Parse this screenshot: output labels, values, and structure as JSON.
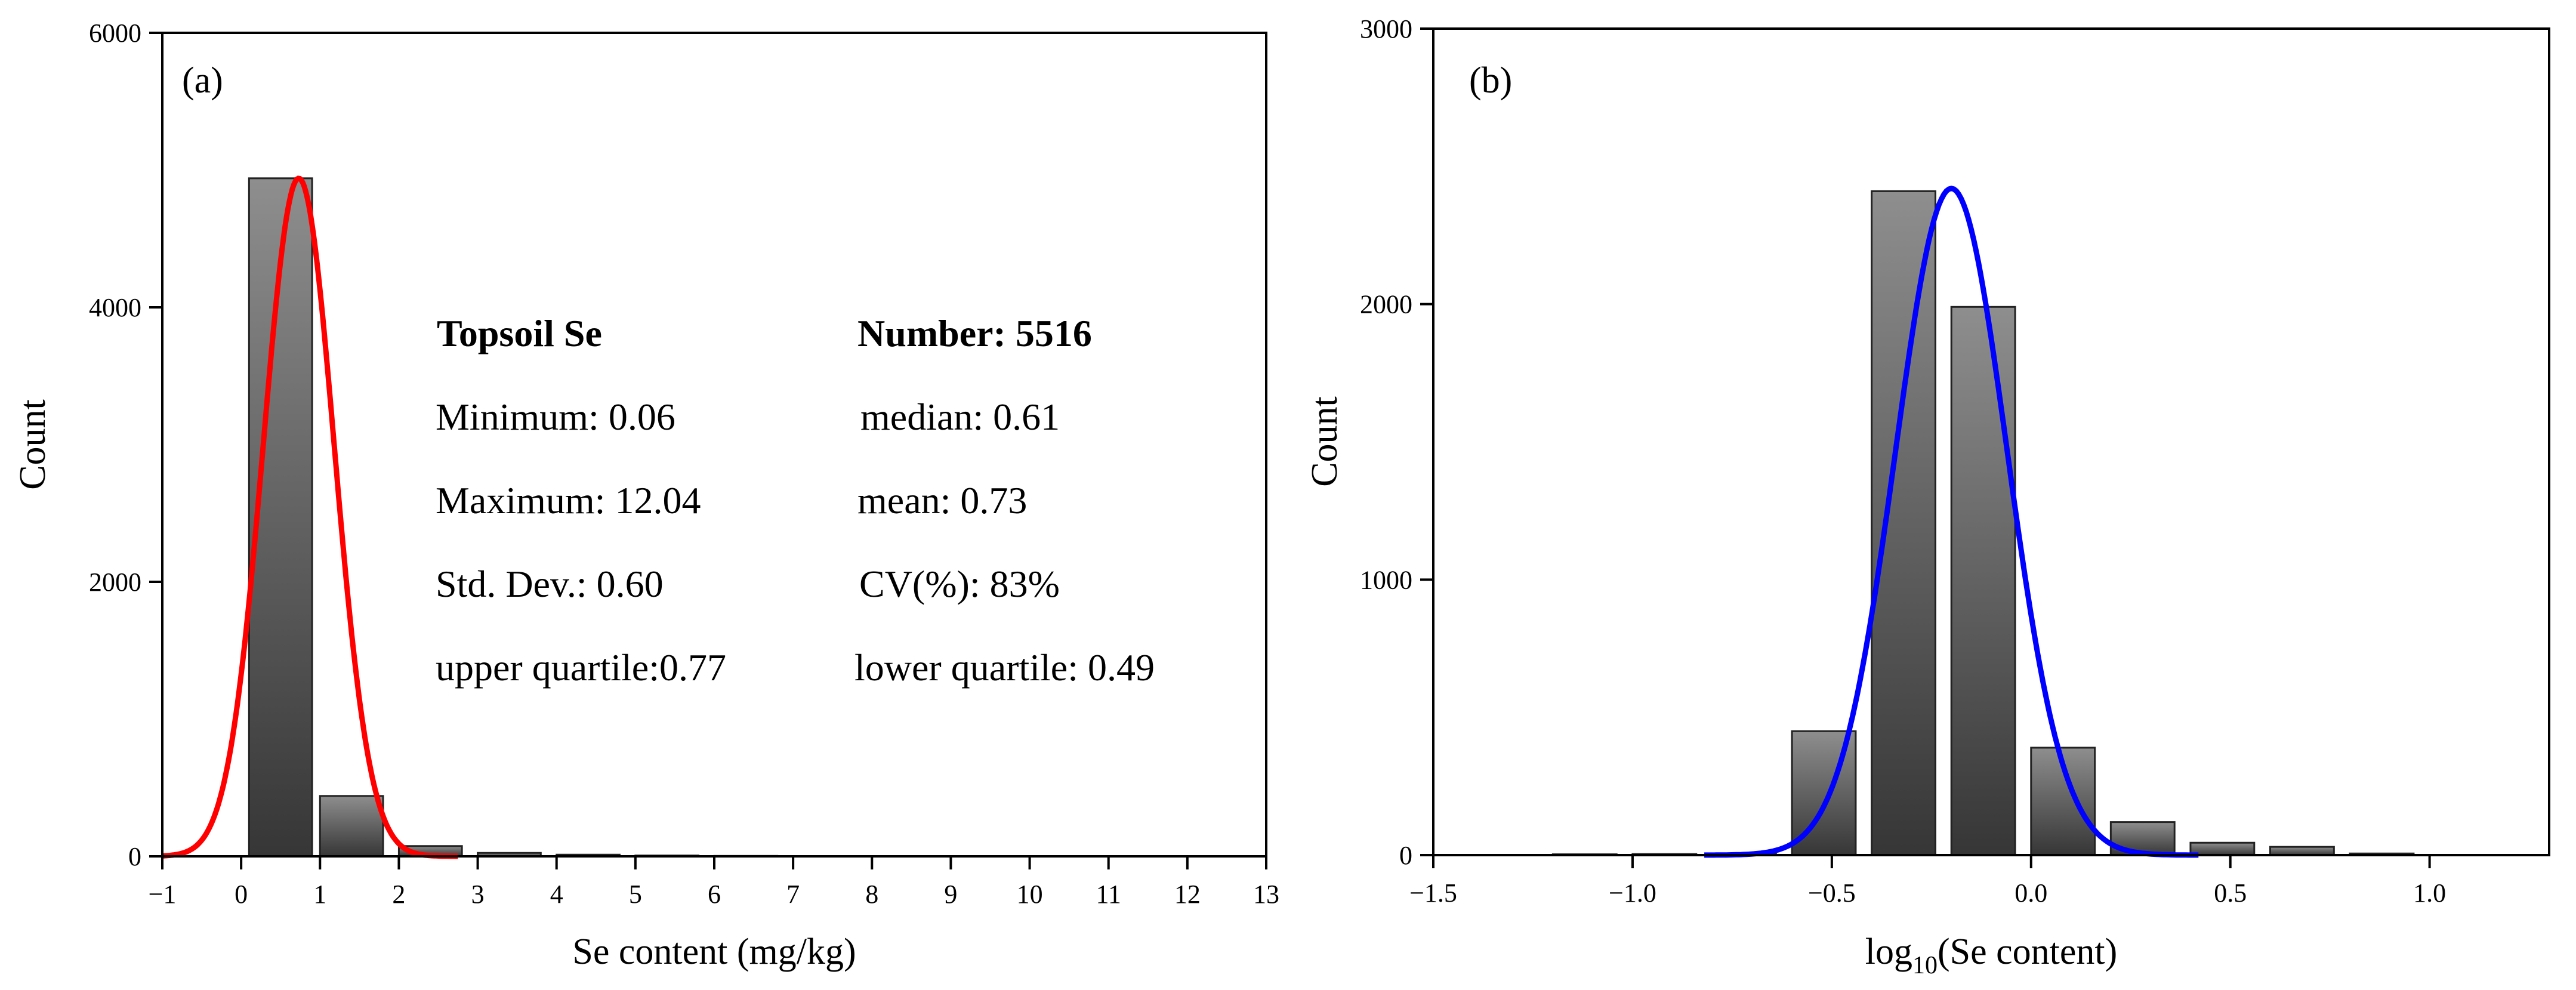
{
  "chart_data": [
    {
      "type": "bar",
      "panel_label": "(a)",
      "xlabel": "Se content (mg/kg)",
      "ylabel": "Count",
      "xlim": [
        -1,
        13
      ],
      "ylim": [
        0,
        6000
      ],
      "x_ticks": [
        -1,
        0,
        1,
        2,
        3,
        4,
        5,
        6,
        7,
        8,
        9,
        10,
        11,
        12,
        13
      ],
      "y_ticks": [
        0,
        2000,
        4000,
        6000
      ],
      "bin_edges": [
        0.1,
        0.9,
        1.0,
        1.8,
        2.0,
        2.8,
        3.0,
        3.8,
        4.0,
        4.8,
        5.0,
        5.8,
        6.0,
        6.8
      ],
      "bars": [
        {
          "x0": 0.1,
          "x1": 0.9,
          "count": 4940
        },
        {
          "x0": 1.0,
          "x1": 1.8,
          "count": 440
        },
        {
          "x0": 2.0,
          "x1": 2.8,
          "count": 75
        },
        {
          "x0": 3.0,
          "x1": 3.8,
          "count": 25
        },
        {
          "x0": 4.0,
          "x1": 4.8,
          "count": 12
        },
        {
          "x0": 5.0,
          "x1": 5.8,
          "count": 6
        },
        {
          "x0": 6.0,
          "x1": 6.8,
          "count": 3
        }
      ],
      "fit_curve": {
        "type": "normal",
        "peak": 4940,
        "mean": 0.73,
        "sd": 0.45,
        "x_range": [
          -1,
          2.75
        ],
        "color": "#ff0000"
      },
      "stats": [
        {
          "text": "Topsoil Se",
          "bold": true
        },
        {
          "text": "Number: 5516",
          "bold": true
        },
        {
          "text": "Minimum: 0.06",
          "bold": false
        },
        {
          "text": "median: 0.61",
          "bold": false
        },
        {
          "text": "Maximum: 12.04",
          "bold": false
        },
        {
          "text": "mean: 0.73",
          "bold": false
        },
        {
          "text": "Std. Dev.: 0.60",
          "bold": false
        },
        {
          "text": "CV(%): 83%",
          "bold": false
        },
        {
          "text": "upper quartile:0.77",
          "bold": false
        },
        {
          "text": "lower quartile: 0.49",
          "bold": false
        }
      ]
    },
    {
      "type": "bar",
      "panel_label": "(b)",
      "xlabel_prefix": "log",
      "xlabel_sub": "10",
      "xlabel_suffix": "(Se content)",
      "ylabel": "Count",
      "xlim": [
        -1.5,
        1.3
      ],
      "ylim": [
        0,
        3000
      ],
      "x_ticks": [
        -1.5,
        -1.0,
        -0.5,
        0.0,
        0.5,
        1.0
      ],
      "y_ticks": [
        0,
        1000,
        2000,
        3000
      ],
      "bars": [
        {
          "x0": -1.2,
          "x1": -1.04,
          "count": 3
        },
        {
          "x0": -1.0,
          "x1": -0.84,
          "count": 4
        },
        {
          "x0": -0.8,
          "x1": -0.64,
          "count": 6
        },
        {
          "x0": -0.6,
          "x1": -0.44,
          "count": 450
        },
        {
          "x0": -0.4,
          "x1": -0.24,
          "count": 2410
        },
        {
          "x0": -0.2,
          "x1": -0.04,
          "count": 1990
        },
        {
          "x0": 0.0,
          "x1": 0.16,
          "count": 390
        },
        {
          "x0": 0.2,
          "x1": 0.36,
          "count": 120
        },
        {
          "x0": 0.4,
          "x1": 0.56,
          "count": 45
        },
        {
          "x0": 0.6,
          "x1": 0.76,
          "count": 30
        },
        {
          "x0": 0.8,
          "x1": 0.96,
          "count": 6
        }
      ],
      "fit_curve": {
        "type": "normal",
        "peak": 2420,
        "mean": -0.2,
        "sd": 0.14,
        "x_range": [
          -0.82,
          0.42
        ],
        "color": "#0000ff"
      }
    }
  ]
}
